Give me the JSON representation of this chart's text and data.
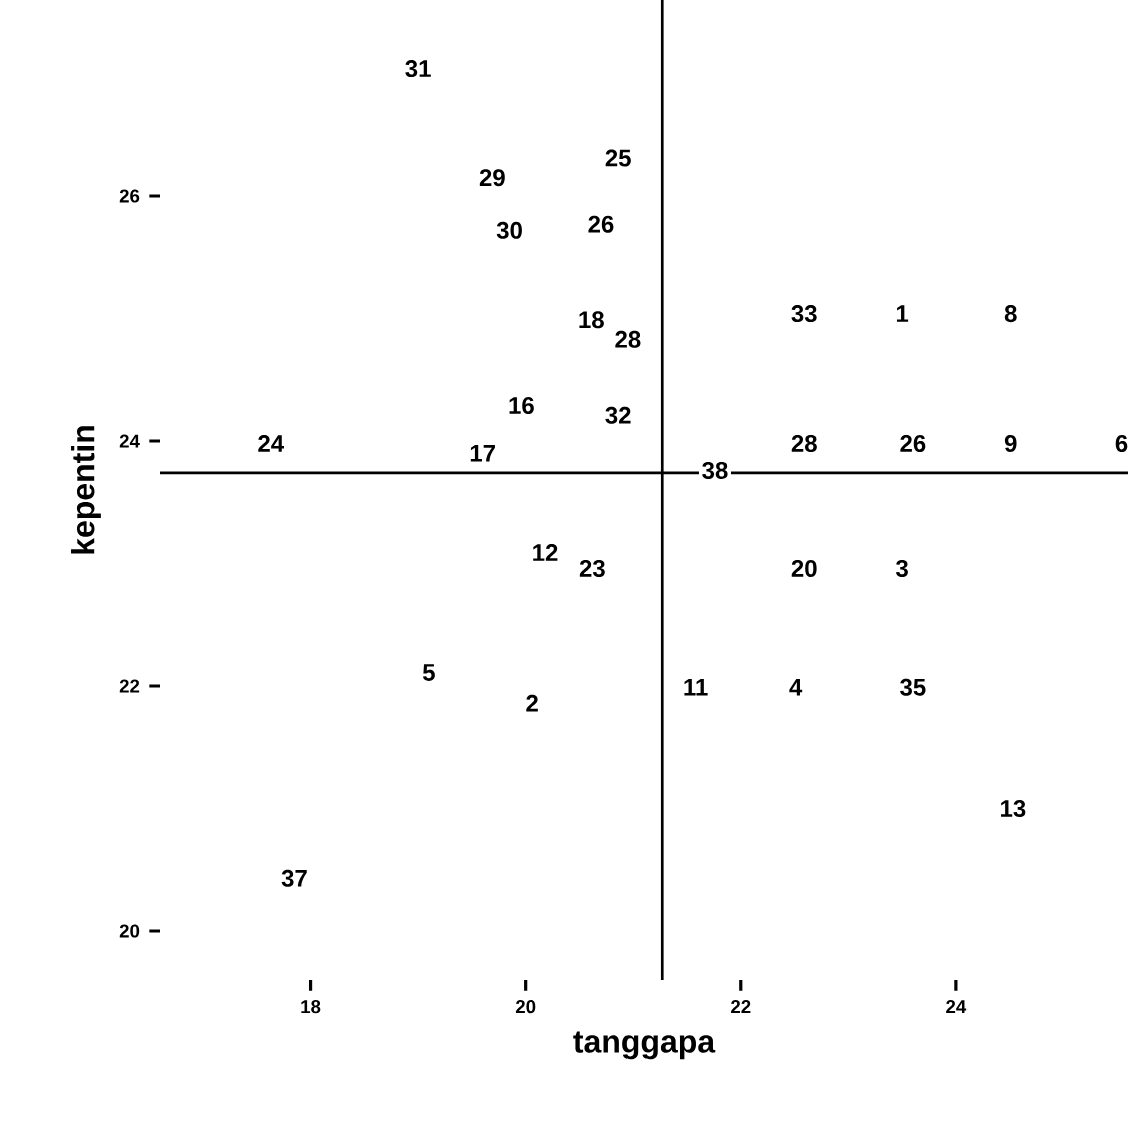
{
  "chart_data": {
    "type": "scatter",
    "xlabel": "tanggapa",
    "ylabel": "kepentin",
    "annotations": [
      {
        "text": "31",
        "x": 19.0,
        "y": 27.04
      },
      {
        "text": "29",
        "x": 19.69,
        "y": 26.15
      },
      {
        "text": "25",
        "x": 20.86,
        "y": 26.31
      },
      {
        "text": "30",
        "x": 19.85,
        "y": 25.72
      },
      {
        "text": "26",
        "x": 20.7,
        "y": 25.77
      },
      {
        "text": "18",
        "x": 20.61,
        "y": 24.99
      },
      {
        "text": "28",
        "x": 20.95,
        "y": 24.83
      },
      {
        "text": "33",
        "x": 22.59,
        "y": 25.04
      },
      {
        "text": "1",
        "x": 23.5,
        "y": 25.04
      },
      {
        "text": "8",
        "x": 24.51,
        "y": 25.04
      },
      {
        "text": "16",
        "x": 19.96,
        "y": 24.29
      },
      {
        "text": "32",
        "x": 20.86,
        "y": 24.21
      },
      {
        "text": "24",
        "x": 17.63,
        "y": 23.98
      },
      {
        "text": "17",
        "x": 19.6,
        "y": 23.9
      },
      {
        "text": "38",
        "x": 21.76,
        "y": 23.76
      },
      {
        "text": "28",
        "x": 22.59,
        "y": 23.98
      },
      {
        "text": "26",
        "x": 23.6,
        "y": 23.98
      },
      {
        "text": "9",
        "x": 24.51,
        "y": 23.98
      },
      {
        "text": "6",
        "x": 25.54,
        "y": 23.98
      },
      {
        "text": "12",
        "x": 20.18,
        "y": 23.09
      },
      {
        "text": "23",
        "x": 20.62,
        "y": 22.96
      },
      {
        "text": "20",
        "x": 22.59,
        "y": 22.96
      },
      {
        "text": "3",
        "x": 23.5,
        "y": 22.96
      },
      {
        "text": "5",
        "x": 19.1,
        "y": 22.11
      },
      {
        "text": "2",
        "x": 20.06,
        "y": 21.86
      },
      {
        "text": "11",
        "x": 21.58,
        "y": 21.99
      },
      {
        "text": "4",
        "x": 22.51,
        "y": 21.99
      },
      {
        "text": "35",
        "x": 23.6,
        "y": 21.99
      },
      {
        "text": "13",
        "x": 24.53,
        "y": 21.0
      },
      {
        "text": "37",
        "x": 17.85,
        "y": 20.43
      }
    ],
    "xlim": [
      16.6,
      25.6
    ],
    "ylim": [
      19.6,
      27.6
    ],
    "xticks": [
      18,
      20,
      22,
      24
    ],
    "yticks": [
      20,
      22,
      24,
      26
    ],
    "ref_lines": [
      {
        "axis": "x",
        "value": 21.27
      },
      {
        "axis": "y",
        "value": 23.74
      }
    ],
    "grid": false
  }
}
